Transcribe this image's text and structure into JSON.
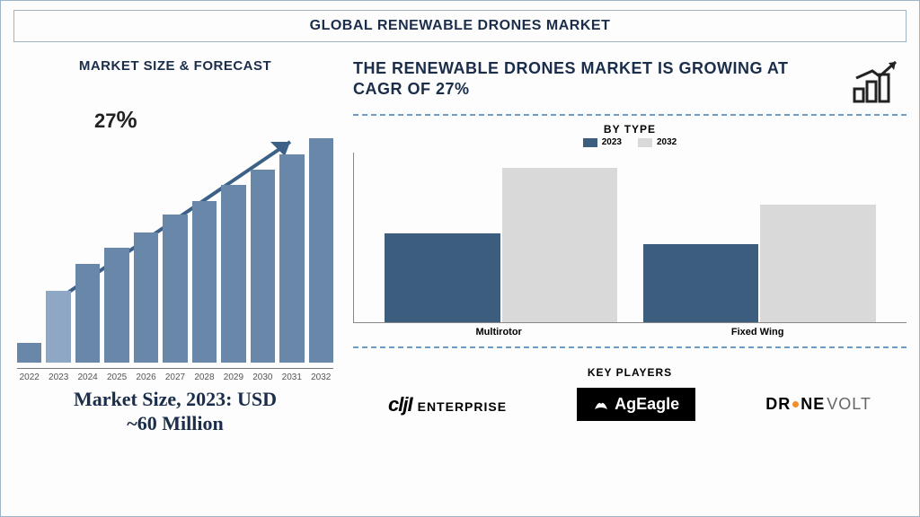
{
  "title": "GLOBAL RENEWABLE DRONES MARKET",
  "title_fontsize": 20,
  "border_color": "#9fb4c7",
  "background_color": "#fdfdfd",
  "text_color": "#1a2d4a",
  "left": {
    "section_title": "MARKET SIZE & FORECAST",
    "cagr_label": "27",
    "cagr_suffix": "%",
    "market_size_line1": "Market Size, 2023: USD",
    "market_size_line2": "~60 Million",
    "forecast_chart": {
      "type": "bar",
      "years": [
        "2022",
        "2023",
        "2024",
        "2025",
        "2026",
        "2027",
        "2028",
        "2029",
        "2030",
        "2031",
        "2032"
      ],
      "values": [
        22,
        80,
        110,
        128,
        145,
        165,
        180,
        198,
        215,
        232,
        250
      ],
      "bar_colors": [
        "#6987a8",
        "#8ea7c4",
        "#6987a8",
        "#6987a8",
        "#6987a8",
        "#6987a8",
        "#6987a8",
        "#6987a8",
        "#6987a8",
        "#6987a8",
        "#6987a8"
      ],
      "ylim": [
        0,
        270
      ],
      "xlabel_fontsize": 10,
      "xlabel_color": "#555555",
      "axis_color": "#777777",
      "arrow_color": "#3c6187"
    }
  },
  "right": {
    "headline": "THE RENEWABLE DRONES MARKET IS GROWING AT CAGR OF 27%",
    "divider_color": "#6c9bc4",
    "divider_style": "dashed",
    "growth_icon_color": "#222222",
    "type_chart": {
      "title": "BY TYPE",
      "type": "grouped-bar",
      "legend": [
        {
          "label": "2023",
          "color": "#3d5d7f"
        },
        {
          "label": "2032",
          "color": "#d9d9d9"
        }
      ],
      "categories": [
        "Multirotor",
        "Fixed Wing"
      ],
      "series_2023": [
        95,
        83
      ],
      "series_2032": [
        165,
        125
      ],
      "ylim": [
        0,
        180
      ],
      "axis_color": "#888888",
      "label_fontsize": 11
    },
    "key_players_title": "KEY PLAYERS",
    "logos": {
      "dji": {
        "brand": "cljI",
        "sub": "ENTERPRISE",
        "color": "#222222"
      },
      "ageagle": {
        "text": "AgEagle",
        "bg": "#000000",
        "fg": "#ffffff"
      },
      "dronevolt": {
        "part1": "DR",
        "part2": "NE",
        "part3": "VOLT",
        "dot_color": "#f28c28"
      }
    }
  }
}
